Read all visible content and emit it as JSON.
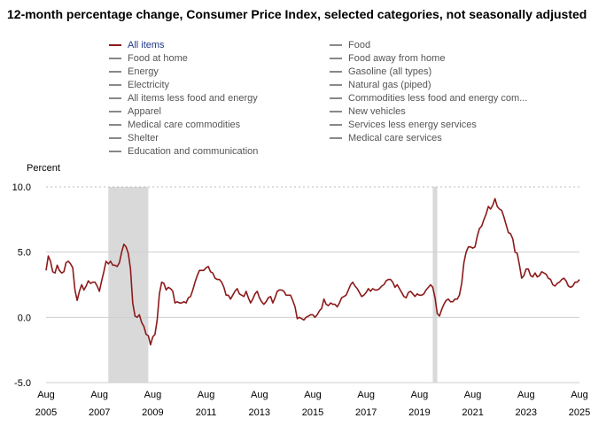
{
  "chart_data": {
    "type": "line",
    "title": "12-month percentage change, Consumer Price Index, selected categories, not seasonally adjusted",
    "ylabel": "Percent",
    "ylim": [
      -5.0,
      10.0
    ],
    "yticks": [
      {
        "value": -5.0,
        "label": "-5.0"
      },
      {
        "value": 0.0,
        "label": "0.0"
      },
      {
        "value": 5.0,
        "label": "5.0"
      },
      {
        "value": 10.0,
        "label": "10.0"
      }
    ],
    "xticks": [
      {
        "t": 2005.583,
        "month": "Aug",
        "year": "2005"
      },
      {
        "t": 2007.583,
        "month": "Aug",
        "year": "2007"
      },
      {
        "t": 2009.583,
        "month": "Aug",
        "year": "2009"
      },
      {
        "t": 2011.583,
        "month": "Aug",
        "year": "2011"
      },
      {
        "t": 2013.583,
        "month": "Aug",
        "year": "2013"
      },
      {
        "t": 2015.583,
        "month": "Aug",
        "year": "2015"
      },
      {
        "t": 2017.583,
        "month": "Aug",
        "year": "2017"
      },
      {
        "t": 2019.583,
        "month": "Aug",
        "year": "2019"
      },
      {
        "t": 2021.583,
        "month": "Aug",
        "year": "2021"
      },
      {
        "t": 2023.583,
        "month": "Aug",
        "year": "2023"
      },
      {
        "t": 2025.583,
        "month": "Aug",
        "year": "2025"
      }
    ],
    "recessions": [
      {
        "start": 2007.917,
        "end": 2009.417
      },
      {
        "start": 2020.083,
        "end": 2020.25
      }
    ],
    "legend": [
      {
        "label": "All items",
        "active": true
      },
      {
        "label": "Food at home",
        "active": false
      },
      {
        "label": "Energy",
        "active": false
      },
      {
        "label": "Electricity",
        "active": false
      },
      {
        "label": "All items less food and energy",
        "active": false
      },
      {
        "label": "Apparel",
        "active": false
      },
      {
        "label": "Medical care commodities",
        "active": false
      },
      {
        "label": "Shelter",
        "active": false
      },
      {
        "label": "Education and communication",
        "active": false
      },
      {
        "label": "Food",
        "active": false
      },
      {
        "label": "Food away from home",
        "active": false
      },
      {
        "label": "Gasoline (all types)",
        "active": false
      },
      {
        "label": "Natural gas (piped)",
        "active": false
      },
      {
        "label": "Commodities less food and energy com...",
        "active": false
      },
      {
        "label": "New vehicles",
        "active": false
      },
      {
        "label": "Services less energy services",
        "active": false
      },
      {
        "label": "Medical care services",
        "active": false
      }
    ],
    "series": [
      {
        "name": "All items",
        "color": "#8b1a1a",
        "points": [
          [
            2005.583,
            3.6
          ],
          [
            2005.667,
            4.7
          ],
          [
            2005.75,
            4.3
          ],
          [
            2005.833,
            3.5
          ],
          [
            2005.917,
            3.4
          ],
          [
            2006.0,
            4.0
          ],
          [
            2006.083,
            3.6
          ],
          [
            2006.167,
            3.4
          ],
          [
            2006.25,
            3.5
          ],
          [
            2006.333,
            4.2
          ],
          [
            2006.417,
            4.3
          ],
          [
            2006.5,
            4.1
          ],
          [
            2006.583,
            3.8
          ],
          [
            2006.667,
            2.1
          ],
          [
            2006.75,
            1.3
          ],
          [
            2006.833,
            2.0
          ],
          [
            2006.917,
            2.5
          ],
          [
            2007.0,
            2.1
          ],
          [
            2007.083,
            2.4
          ],
          [
            2007.167,
            2.8
          ],
          [
            2007.25,
            2.6
          ],
          [
            2007.333,
            2.7
          ],
          [
            2007.417,
            2.7
          ],
          [
            2007.5,
            2.4
          ],
          [
            2007.583,
            2.0
          ],
          [
            2007.667,
            2.8
          ],
          [
            2007.75,
            3.5
          ],
          [
            2007.833,
            4.3
          ],
          [
            2007.917,
            4.1
          ],
          [
            2008.0,
            4.3
          ],
          [
            2008.083,
            4.0
          ],
          [
            2008.167,
            4.0
          ],
          [
            2008.25,
            3.9
          ],
          [
            2008.333,
            4.2
          ],
          [
            2008.417,
            5.0
          ],
          [
            2008.5,
            5.6
          ],
          [
            2008.583,
            5.4
          ],
          [
            2008.667,
            4.9
          ],
          [
            2008.75,
            3.7
          ],
          [
            2008.833,
            1.1
          ],
          [
            2008.917,
            0.1
          ],
          [
            2009.0,
            0.0
          ],
          [
            2009.083,
            0.2
          ],
          [
            2009.167,
            -0.4
          ],
          [
            2009.25,
            -0.7
          ],
          [
            2009.333,
            -1.3
          ],
          [
            2009.417,
            -1.4
          ],
          [
            2009.5,
            -2.1
          ],
          [
            2009.583,
            -1.5
          ],
          [
            2009.667,
            -1.3
          ],
          [
            2009.75,
            -0.2
          ],
          [
            2009.833,
            1.8
          ],
          [
            2009.917,
            2.7
          ],
          [
            2010.0,
            2.6
          ],
          [
            2010.083,
            2.1
          ],
          [
            2010.167,
            2.3
          ],
          [
            2010.25,
            2.2
          ],
          [
            2010.333,
            2.0
          ],
          [
            2010.417,
            1.1
          ],
          [
            2010.5,
            1.2
          ],
          [
            2010.583,
            1.1
          ],
          [
            2010.667,
            1.1
          ],
          [
            2010.75,
            1.2
          ],
          [
            2010.833,
            1.1
          ],
          [
            2010.917,
            1.5
          ],
          [
            2011.0,
            1.6
          ],
          [
            2011.083,
            2.1
          ],
          [
            2011.167,
            2.7
          ],
          [
            2011.25,
            3.2
          ],
          [
            2011.333,
            3.6
          ],
          [
            2011.417,
            3.6
          ],
          [
            2011.5,
            3.6
          ],
          [
            2011.583,
            3.8
          ],
          [
            2011.667,
            3.9
          ],
          [
            2011.75,
            3.5
          ],
          [
            2011.833,
            3.4
          ],
          [
            2011.917,
            3.0
          ],
          [
            2012.0,
            2.9
          ],
          [
            2012.083,
            2.9
          ],
          [
            2012.167,
            2.7
          ],
          [
            2012.25,
            2.3
          ],
          [
            2012.333,
            1.7
          ],
          [
            2012.417,
            1.7
          ],
          [
            2012.5,
            1.4
          ],
          [
            2012.583,
            1.7
          ],
          [
            2012.667,
            2.0
          ],
          [
            2012.75,
            2.2
          ],
          [
            2012.833,
            1.8
          ],
          [
            2012.917,
            1.7
          ],
          [
            2013.0,
            1.6
          ],
          [
            2013.083,
            2.0
          ],
          [
            2013.167,
            1.5
          ],
          [
            2013.25,
            1.1
          ],
          [
            2013.333,
            1.4
          ],
          [
            2013.417,
            1.8
          ],
          [
            2013.5,
            2.0
          ],
          [
            2013.583,
            1.5
          ],
          [
            2013.667,
            1.2
          ],
          [
            2013.75,
            1.0
          ],
          [
            2013.833,
            1.2
          ],
          [
            2013.917,
            1.5
          ],
          [
            2014.0,
            1.6
          ],
          [
            2014.083,
            1.1
          ],
          [
            2014.167,
            1.5
          ],
          [
            2014.25,
            2.0
          ],
          [
            2014.333,
            2.1
          ],
          [
            2014.417,
            2.1
          ],
          [
            2014.5,
            2.0
          ],
          [
            2014.583,
            1.7
          ],
          [
            2014.667,
            1.7
          ],
          [
            2014.75,
            1.7
          ],
          [
            2014.833,
            1.3
          ],
          [
            2014.917,
            0.8
          ],
          [
            2015.0,
            -0.1
          ],
          [
            2015.083,
            0.0
          ],
          [
            2015.167,
            -0.1
          ],
          [
            2015.25,
            -0.2
          ],
          [
            2015.333,
            0.0
          ],
          [
            2015.417,
            0.1
          ],
          [
            2015.5,
            0.2
          ],
          [
            2015.583,
            0.2
          ],
          [
            2015.667,
            0.0
          ],
          [
            2015.75,
            0.2
          ],
          [
            2015.833,
            0.5
          ],
          [
            2015.917,
            0.7
          ],
          [
            2016.0,
            1.4
          ],
          [
            2016.083,
            1.0
          ],
          [
            2016.167,
            0.9
          ],
          [
            2016.25,
            1.1
          ],
          [
            2016.333,
            1.0
          ],
          [
            2016.417,
            1.0
          ],
          [
            2016.5,
            0.8
          ],
          [
            2016.583,
            1.1
          ],
          [
            2016.667,
            1.5
          ],
          [
            2016.75,
            1.6
          ],
          [
            2016.833,
            1.7
          ],
          [
            2016.917,
            2.1
          ],
          [
            2017.0,
            2.5
          ],
          [
            2017.083,
            2.7
          ],
          [
            2017.167,
            2.4
          ],
          [
            2017.25,
            2.2
          ],
          [
            2017.333,
            1.9
          ],
          [
            2017.417,
            1.6
          ],
          [
            2017.5,
            1.7
          ],
          [
            2017.583,
            1.9
          ],
          [
            2017.667,
            2.2
          ],
          [
            2017.75,
            2.0
          ],
          [
            2017.833,
            2.2
          ],
          [
            2017.917,
            2.1
          ],
          [
            2018.0,
            2.1
          ],
          [
            2018.083,
            2.2
          ],
          [
            2018.167,
            2.4
          ],
          [
            2018.25,
            2.5
          ],
          [
            2018.333,
            2.8
          ],
          [
            2018.417,
            2.9
          ],
          [
            2018.5,
            2.9
          ],
          [
            2018.583,
            2.7
          ],
          [
            2018.667,
            2.3
          ],
          [
            2018.75,
            2.5
          ],
          [
            2018.833,
            2.2
          ],
          [
            2018.917,
            1.9
          ],
          [
            2019.0,
            1.6
          ],
          [
            2019.083,
            1.5
          ],
          [
            2019.167,
            1.9
          ],
          [
            2019.25,
            2.0
          ],
          [
            2019.333,
            1.8
          ],
          [
            2019.417,
            1.6
          ],
          [
            2019.5,
            1.8
          ],
          [
            2019.583,
            1.7
          ],
          [
            2019.667,
            1.7
          ],
          [
            2019.75,
            1.8
          ],
          [
            2019.833,
            2.1
          ],
          [
            2019.917,
            2.3
          ],
          [
            2020.0,
            2.5
          ],
          [
            2020.083,
            2.3
          ],
          [
            2020.167,
            1.5
          ],
          [
            2020.25,
            0.3
          ],
          [
            2020.333,
            0.1
          ],
          [
            2020.417,
            0.6
          ],
          [
            2020.5,
            1.0
          ],
          [
            2020.583,
            1.3
          ],
          [
            2020.667,
            1.4
          ],
          [
            2020.75,
            1.2
          ],
          [
            2020.833,
            1.2
          ],
          [
            2020.917,
            1.4
          ],
          [
            2021.0,
            1.4
          ],
          [
            2021.083,
            1.7
          ],
          [
            2021.167,
            2.6
          ],
          [
            2021.25,
            4.2
          ],
          [
            2021.333,
            5.0
          ],
          [
            2021.417,
            5.4
          ],
          [
            2021.5,
            5.4
          ],
          [
            2021.583,
            5.3
          ],
          [
            2021.667,
            5.4
          ],
          [
            2021.75,
            6.2
          ],
          [
            2021.833,
            6.8
          ],
          [
            2021.917,
            7.0
          ],
          [
            2022.0,
            7.5
          ],
          [
            2022.083,
            7.9
          ],
          [
            2022.167,
            8.5
          ],
          [
            2022.25,
            8.3
          ],
          [
            2022.333,
            8.6
          ],
          [
            2022.417,
            9.1
          ],
          [
            2022.5,
            8.5
          ],
          [
            2022.583,
            8.3
          ],
          [
            2022.667,
            8.2
          ],
          [
            2022.75,
            7.7
          ],
          [
            2022.833,
            7.1
          ],
          [
            2022.917,
            6.5
          ],
          [
            2023.0,
            6.4
          ],
          [
            2023.083,
            6.0
          ],
          [
            2023.167,
            5.0
          ],
          [
            2023.25,
            4.9
          ],
          [
            2023.333,
            4.0
          ],
          [
            2023.417,
            3.0
          ],
          [
            2023.5,
            3.2
          ],
          [
            2023.583,
            3.7
          ],
          [
            2023.667,
            3.7
          ],
          [
            2023.75,
            3.2
          ],
          [
            2023.833,
            3.1
          ],
          [
            2023.917,
            3.4
          ],
          [
            2024.0,
            3.1
          ],
          [
            2024.083,
            3.2
          ],
          [
            2024.167,
            3.5
          ],
          [
            2024.25,
            3.4
          ],
          [
            2024.333,
            3.3
          ],
          [
            2024.417,
            3.0
          ],
          [
            2024.5,
            2.9
          ],
          [
            2024.583,
            2.5
          ],
          [
            2024.667,
            2.4
          ],
          [
            2024.75,
            2.6
          ],
          [
            2024.833,
            2.7
          ],
          [
            2024.917,
            2.9
          ],
          [
            2025.0,
            3.0
          ],
          [
            2025.083,
            2.8
          ],
          [
            2025.167,
            2.4
          ],
          [
            2025.25,
            2.3
          ],
          [
            2025.333,
            2.4
          ],
          [
            2025.417,
            2.7
          ],
          [
            2025.5,
            2.7
          ],
          [
            2025.583,
            2.9
          ]
        ]
      }
    ]
  }
}
